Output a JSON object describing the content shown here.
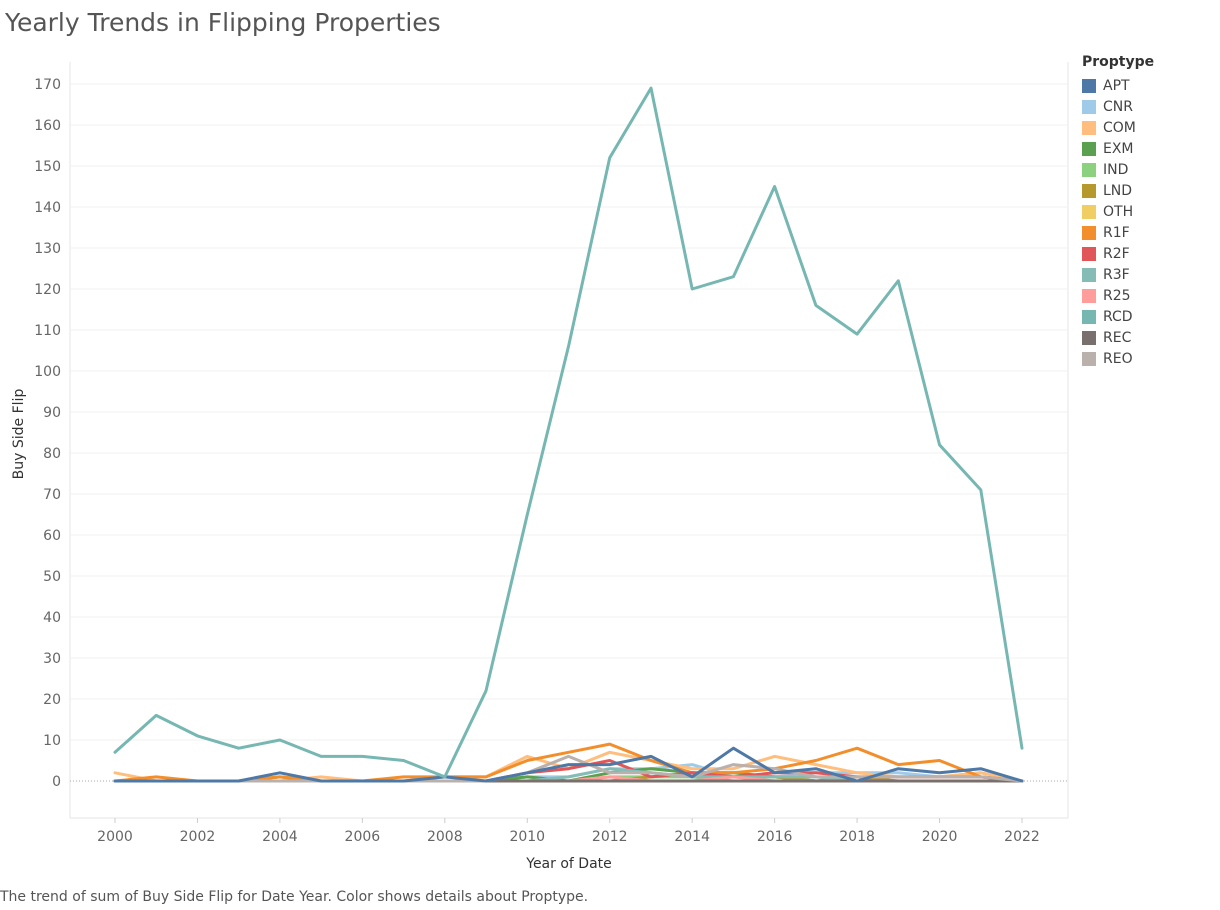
{
  "chart_data": {
    "type": "line",
    "title": "Yearly Trends in Flipping Properties",
    "xlabel": "Year of Date",
    "ylabel": "Buy Side Flip",
    "xlim": [
      1999,
      2023
    ],
    "ylim": [
      -10,
      175
    ],
    "xticks": [
      2000,
      2002,
      2004,
      2006,
      2008,
      2010,
      2012,
      2014,
      2016,
      2018,
      2020,
      2022
    ],
    "yticks": [
      0,
      10,
      20,
      30,
      40,
      50,
      60,
      70,
      80,
      90,
      100,
      110,
      120,
      130,
      140,
      150,
      160,
      170
    ],
    "grid": true,
    "legend": {
      "title": "Proptype",
      "position": "right"
    },
    "caption": "The trend of sum of Buy Side Flip for Date Year.  Color shows details about Proptype.",
    "x": [
      2000,
      2001,
      2002,
      2003,
      2004,
      2005,
      2006,
      2007,
      2008,
      2009,
      2010,
      2011,
      2012,
      2013,
      2014,
      2015,
      2016,
      2017,
      2018,
      2019,
      2020,
      2021,
      2022
    ],
    "series": [
      {
        "name": "APT",
        "color": "#4e79a7",
        "values": [
          0,
          0,
          0,
          0,
          2,
          0,
          0,
          0,
          1,
          0,
          2,
          4,
          4,
          6,
          1,
          8,
          2,
          3,
          0,
          3,
          2,
          3,
          0
        ]
      },
      {
        "name": "CNR",
        "color": "#a0cbe8",
        "values": [
          0,
          0,
          0,
          0,
          0,
          0,
          0,
          0,
          0,
          0,
          1,
          1,
          3,
          3,
          4,
          1,
          1,
          2,
          2,
          2,
          1,
          2,
          0
        ]
      },
      {
        "name": "COM",
        "color": "#ffbe7d",
        "values": [
          2,
          0,
          0,
          0,
          0,
          1,
          0,
          0,
          1,
          1,
          6,
          3,
          7,
          5,
          3,
          3,
          6,
          4,
          2,
          1,
          1,
          2,
          0
        ]
      },
      {
        "name": "EXM",
        "color": "#59a14f",
        "values": [
          0,
          0,
          0,
          0,
          1,
          0,
          0,
          0,
          0,
          0,
          1,
          0,
          2,
          3,
          2,
          2,
          1,
          0,
          0,
          0,
          0,
          0,
          0
        ]
      },
      {
        "name": "IND",
        "color": "#8cd17d",
        "values": [
          0,
          0,
          0,
          0,
          0,
          0,
          0,
          0,
          0,
          0,
          0,
          0,
          1,
          1,
          1,
          0,
          0,
          0,
          0,
          0,
          0,
          0,
          0
        ]
      },
      {
        "name": "LND",
        "color": "#b6992d",
        "values": [
          0,
          0,
          0,
          0,
          0,
          0,
          0,
          0,
          0,
          0,
          0,
          0,
          0,
          1,
          2,
          1,
          1,
          0,
          1,
          0,
          0,
          0,
          0
        ]
      },
      {
        "name": "OTH",
        "color": "#f1ce63",
        "values": [
          0,
          0,
          0,
          0,
          0,
          0,
          0,
          0,
          0,
          0,
          0,
          0,
          0,
          0,
          0,
          0,
          0,
          0,
          0,
          0,
          0,
          0,
          0
        ]
      },
      {
        "name": "R1F",
        "color": "#f28e2b",
        "values": [
          0,
          1,
          0,
          0,
          1,
          0,
          0,
          1,
          1,
          1,
          5,
          7,
          9,
          5,
          2,
          2,
          3,
          5,
          8,
          4,
          5,
          1,
          0
        ]
      },
      {
        "name": "R2F",
        "color": "#e15759",
        "values": [
          0,
          0,
          0,
          0,
          0,
          0,
          0,
          0,
          0,
          0,
          2,
          3,
          5,
          1,
          2,
          1,
          2,
          2,
          1,
          1,
          1,
          1,
          0
        ]
      },
      {
        "name": "R3F",
        "color": "#86bcb6",
        "values": [
          0,
          0,
          0,
          0,
          0,
          0,
          0,
          0,
          0,
          0,
          0,
          1,
          3,
          2,
          1,
          1,
          1,
          1,
          0,
          0,
          0,
          0,
          0
        ]
      },
      {
        "name": "R25",
        "color": "#ff9d9a",
        "values": [
          0,
          0,
          0,
          0,
          0,
          0,
          0,
          0,
          0,
          0,
          0,
          0,
          1,
          0,
          0,
          1,
          0,
          0,
          0,
          0,
          0,
          0,
          0
        ]
      },
      {
        "name": "RCD",
        "color": "#76b7b2",
        "values": [
          7,
          16,
          11,
          8,
          10,
          6,
          6,
          5,
          1,
          22,
          65,
          106,
          152,
          169,
          120,
          123,
          145,
          116,
          109,
          122,
          82,
          71,
          8
        ]
      },
      {
        "name": "REC",
        "color": "#79706e",
        "values": [
          0,
          0,
          0,
          0,
          0,
          0,
          0,
          0,
          0,
          0,
          0,
          0,
          0,
          0,
          0,
          0,
          0,
          0,
          0,
          0,
          0,
          0,
          0
        ]
      },
      {
        "name": "REO",
        "color": "#bab0ac",
        "values": [
          0,
          0,
          0,
          0,
          0,
          0,
          0,
          0,
          0,
          0,
          2,
          6,
          2,
          2,
          1,
          4,
          3,
          1,
          1,
          1,
          1,
          1,
          0
        ]
      }
    ]
  }
}
